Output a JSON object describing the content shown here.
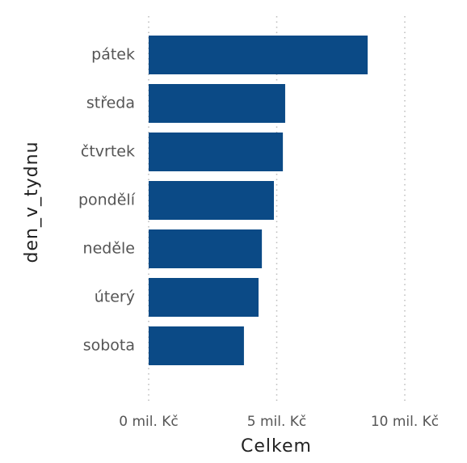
{
  "chart_data": {
    "type": "bar",
    "orientation": "horizontal",
    "categories": [
      "pátek",
      "středa",
      "čtvrtek",
      "pondělí",
      "neděle",
      "úterý",
      "sobota"
    ],
    "values": [
      8.55,
      5.33,
      5.24,
      4.89,
      4.42,
      4.29,
      3.72
    ],
    "color": "#0b4a86",
    "xlabel": "Celkem",
    "ylabel": "den_v_tydnu",
    "xlim": [
      0,
      10
    ],
    "xticks": [
      {
        "value": 0,
        "label": "0 mil. Kč"
      },
      {
        "value": 5,
        "label": "5 mil. Kč"
      },
      {
        "value": 10,
        "label": "10 mil. Kč"
      }
    ],
    "grid": true
  }
}
